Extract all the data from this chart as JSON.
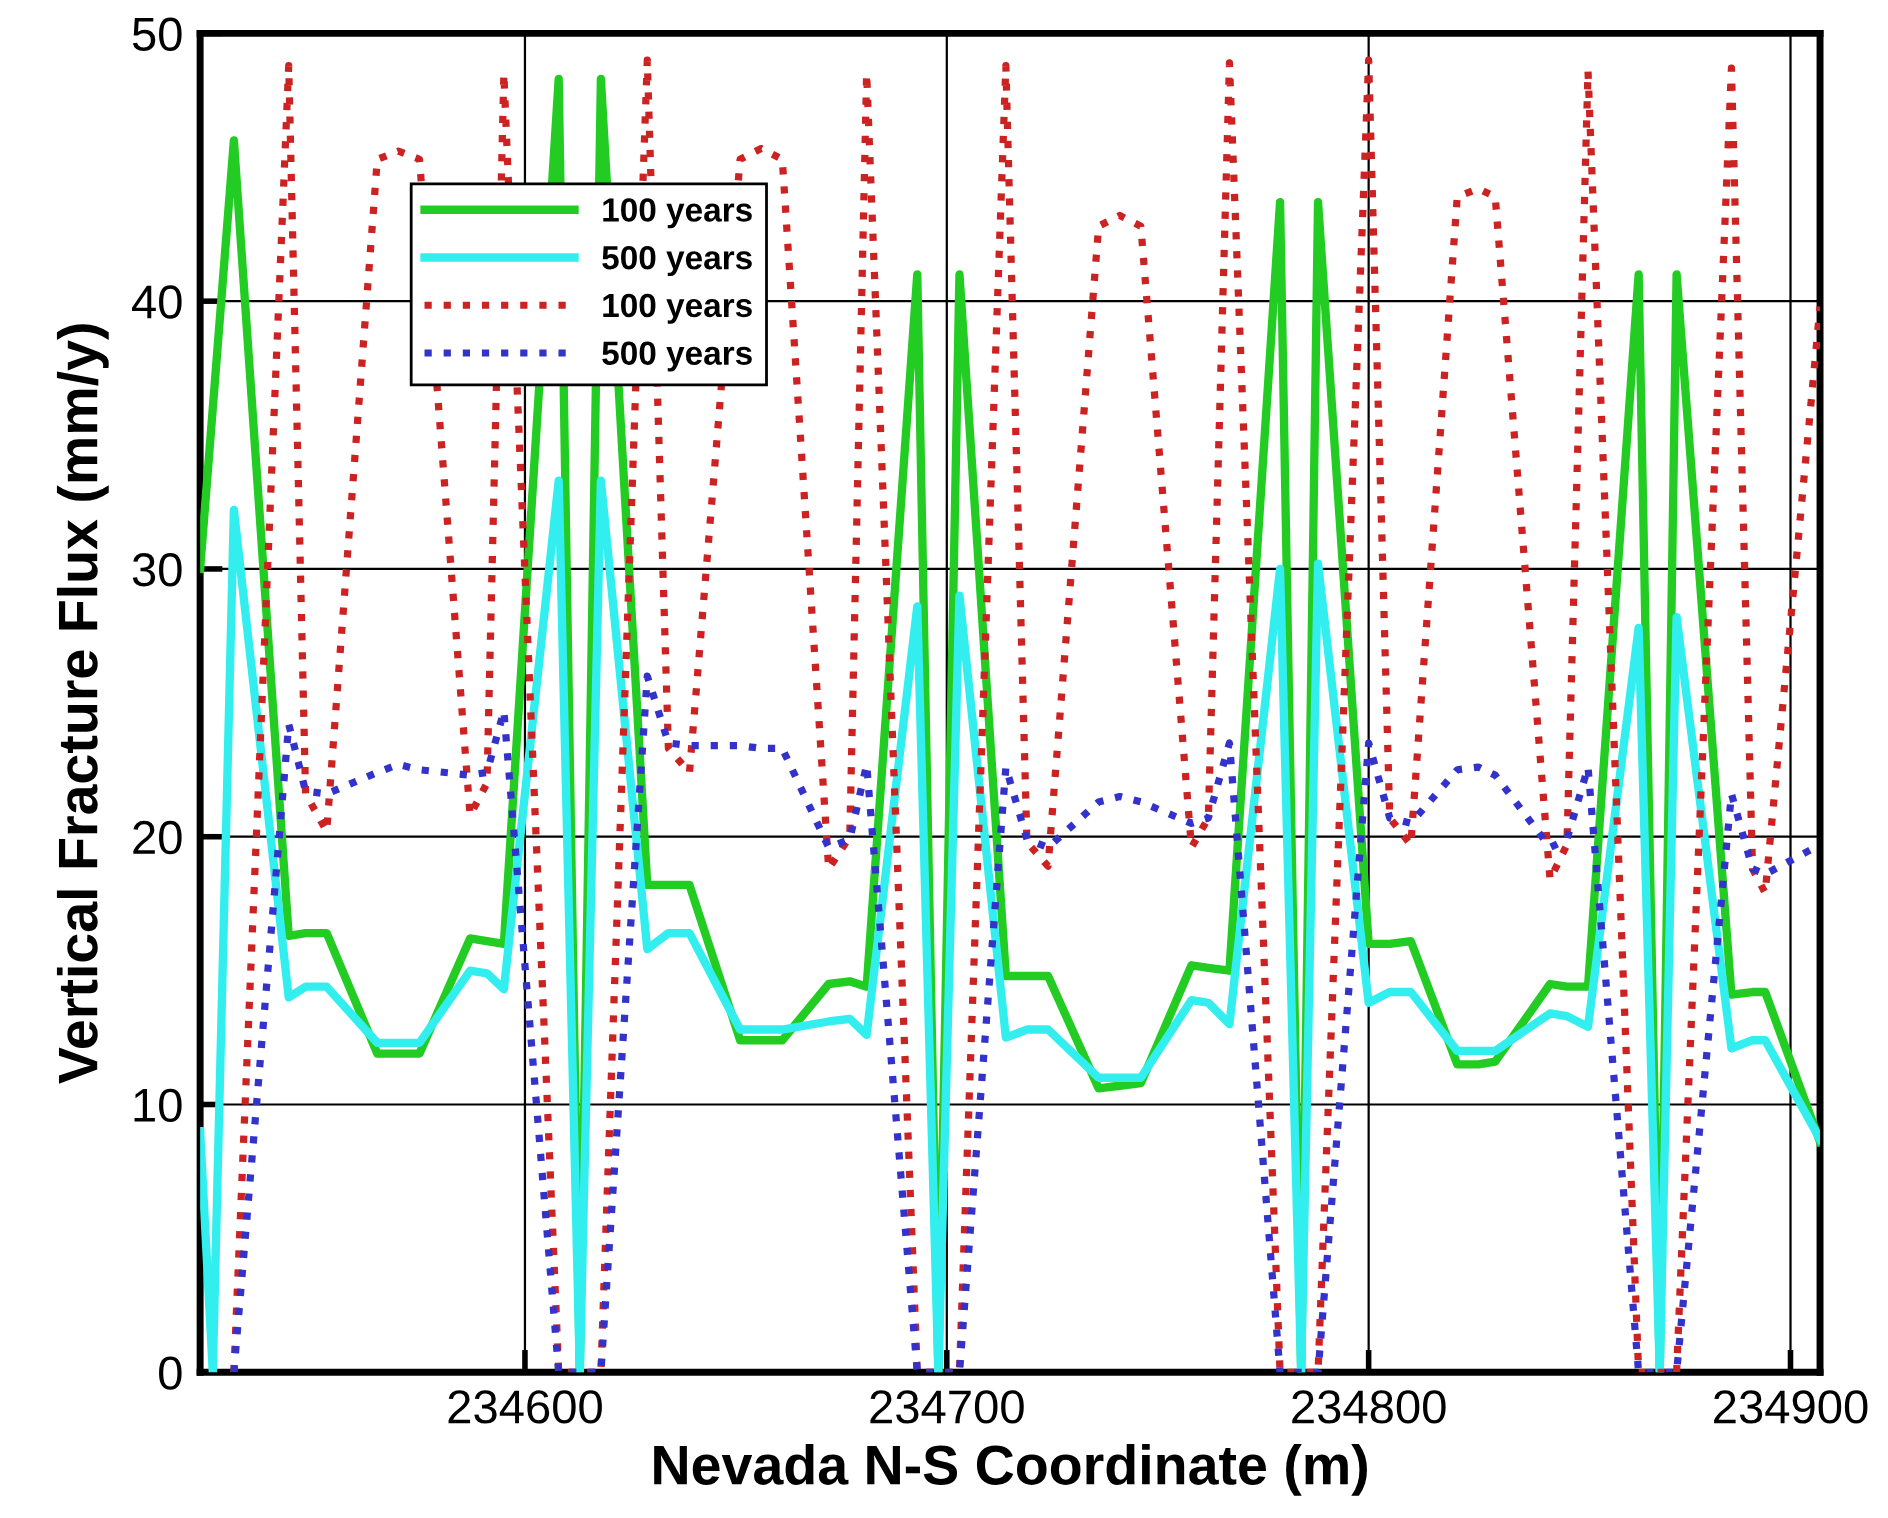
{
  "chart_data": {
    "type": "line",
    "xlabel": "Nevada N-S Coordinate (m)",
    "ylabel": "Vertical Fracture Flux (mm/y)",
    "xlim": [
      234523,
      234907
    ],
    "xticks": [
      234600,
      234700,
      234800,
      234900
    ],
    "ylim": [
      0,
      50
    ],
    "yticks": [
      0,
      10,
      20,
      30,
      40,
      50
    ],
    "grid": true,
    "legend": "top left",
    "marker": "none",
    "series": [
      {
        "name": "100 years",
        "color": "#22cc22",
        "line_style": "solid",
        "x": [
          234523,
          234531,
          234544,
          234548,
          234553,
          234565,
          234570,
          234575,
          234587,
          234591,
          234595,
          234608,
          234613,
          234618,
          234629,
          234634,
          234639,
          234651,
          234656,
          234661,
          234672,
          234677,
          234681,
          234693,
          234698,
          234703,
          234714,
          234719,
          234724,
          234736,
          234741,
          234746,
          234758,
          234762,
          234767,
          234779,
          234784,
          234788,
          234800,
          234805,
          234810,
          234821,
          234826,
          234830,
          234843,
          234847,
          234852,
          234864,
          234869,
          234873,
          234886,
          234891,
          234894,
          234907
        ],
        "values": [
          30,
          46,
          16.3,
          16.4,
          16.4,
          11.9,
          11.9,
          11.9,
          16.2,
          16.1,
          16.0,
          48.3,
          0,
          48.3,
          18.2,
          18.2,
          18.2,
          12.4,
          12.4,
          12.4,
          14.5,
          14.6,
          14.4,
          41.0,
          0,
          41.0,
          14.8,
          14.8,
          14.8,
          10.6,
          10.7,
          10.8,
          15.2,
          15.1,
          15.0,
          43.7,
          0,
          43.7,
          16.0,
          16.0,
          16.1,
          11.5,
          11.5,
          11.6,
          14.5,
          14.4,
          14.4,
          41.0,
          0,
          41.0,
          14.1,
          14.2,
          14.2,
          8.6
        ]
      },
      {
        "name": "500 years",
        "color": "#33eeee",
        "line_style": "solid",
        "x": [
          234523,
          234526,
          234531,
          234544,
          234548,
          234553,
          234565,
          234570,
          234575,
          234587,
          234591,
          234595,
          234608,
          234613,
          234618,
          234629,
          234634,
          234639,
          234651,
          234656,
          234661,
          234672,
          234677,
          234681,
          234693,
          234698,
          234703,
          234714,
          234719,
          234724,
          234736,
          234741,
          234746,
          234758,
          234762,
          234767,
          234779,
          234784,
          234788,
          234800,
          234805,
          234810,
          234821,
          234826,
          234830,
          234843,
          234847,
          234852,
          234864,
          234869,
          234873,
          234886,
          234891,
          234894,
          234907
        ],
        "values": [
          9,
          0,
          32.2,
          14.0,
          14.4,
          14.4,
          12.3,
          12.3,
          12.3,
          15.0,
          14.9,
          14.3,
          33.3,
          0,
          33.3,
          15.8,
          16.4,
          16.4,
          12.8,
          12.8,
          12.8,
          13.1,
          13.2,
          12.6,
          28.6,
          0,
          29.0,
          12.5,
          12.8,
          12.8,
          11.0,
          11.0,
          11.0,
          13.9,
          13.8,
          13.0,
          30.0,
          0,
          30.2,
          13.8,
          14.2,
          14.2,
          12.0,
          12.0,
          12.0,
          13.4,
          13.3,
          12.9,
          27.8,
          0,
          28.2,
          12.1,
          12.4,
          12.4,
          8.7
        ]
      },
      {
        "name": "100 years",
        "color": "#cc2222",
        "line_style": "dotted",
        "x": [
          234531,
          234544,
          234548,
          234553,
          234565,
          234570,
          234575,
          234587,
          234591,
          234595,
          234608,
          234613,
          234618,
          234629,
          234634,
          234639,
          234651,
          234656,
          234661,
          234672,
          234677,
          234681,
          234693,
          234698,
          234703,
          234714,
          234719,
          234724,
          234736,
          234741,
          234746,
          234758,
          234762,
          234767,
          234779,
          234784,
          234788,
          234800,
          234805,
          234810,
          234821,
          234826,
          234830,
          234843,
          234847,
          234852,
          234864,
          234869,
          234873,
          234886,
          234891,
          234894,
          234907
        ],
        "values": [
          0,
          48.8,
          21.6,
          20.2,
          45.3,
          45.6,
          45.3,
          20.8,
          22.0,
          48.5,
          0,
          0,
          0,
          49.0,
          23.3,
          22.4,
          45.3,
          45.7,
          45.3,
          18.8,
          20.0,
          48.5,
          0,
          0,
          0,
          48.8,
          19.8,
          18.9,
          42.8,
          43.2,
          42.8,
          19.6,
          20.7,
          48.9,
          0,
          0,
          0,
          49.0,
          20.7,
          19.7,
          43.9,
          44.2,
          43.9,
          18.4,
          19.7,
          48.6,
          0,
          0,
          0,
          48.7,
          18.8,
          17.9,
          39.8
        ]
      },
      {
        "name": "500 years",
        "color": "#3333cc",
        "line_style": "dotted",
        "x": [
          234531,
          234544,
          234548,
          234553,
          234565,
          234570,
          234575,
          234587,
          234591,
          234595,
          234608,
          234613,
          234618,
          234629,
          234634,
          234639,
          234651,
          234656,
          234661,
          234672,
          234677,
          234681,
          234693,
          234698,
          234703,
          234714,
          234719,
          234724,
          234736,
          234741,
          234746,
          234758,
          234762,
          234767,
          234779,
          234784,
          234788,
          234800,
          234805,
          234810,
          234821,
          234826,
          234830,
          234843,
          234847,
          234852,
          234864,
          234869,
          234873,
          234886,
          234891,
          234894,
          234907
        ],
        "values": [
          0,
          24.2,
          21.7,
          21.6,
          22.4,
          22.7,
          22.5,
          22.3,
          22.4,
          24.7,
          0,
          0,
          0,
          26.0,
          23.5,
          23.4,
          23.4,
          23.3,
          23.3,
          19.6,
          19.9,
          22.7,
          0,
          0,
          0,
          22.6,
          19.9,
          19.6,
          21.3,
          21.5,
          21.3,
          20.5,
          20.7,
          23.5,
          0,
          0,
          0,
          23.5,
          20.7,
          20.5,
          22.5,
          22.6,
          22.3,
          19.6,
          19.9,
          22.6,
          0,
          0,
          0,
          21.6,
          18.8,
          18.6,
          19.7
        ]
      }
    ]
  }
}
